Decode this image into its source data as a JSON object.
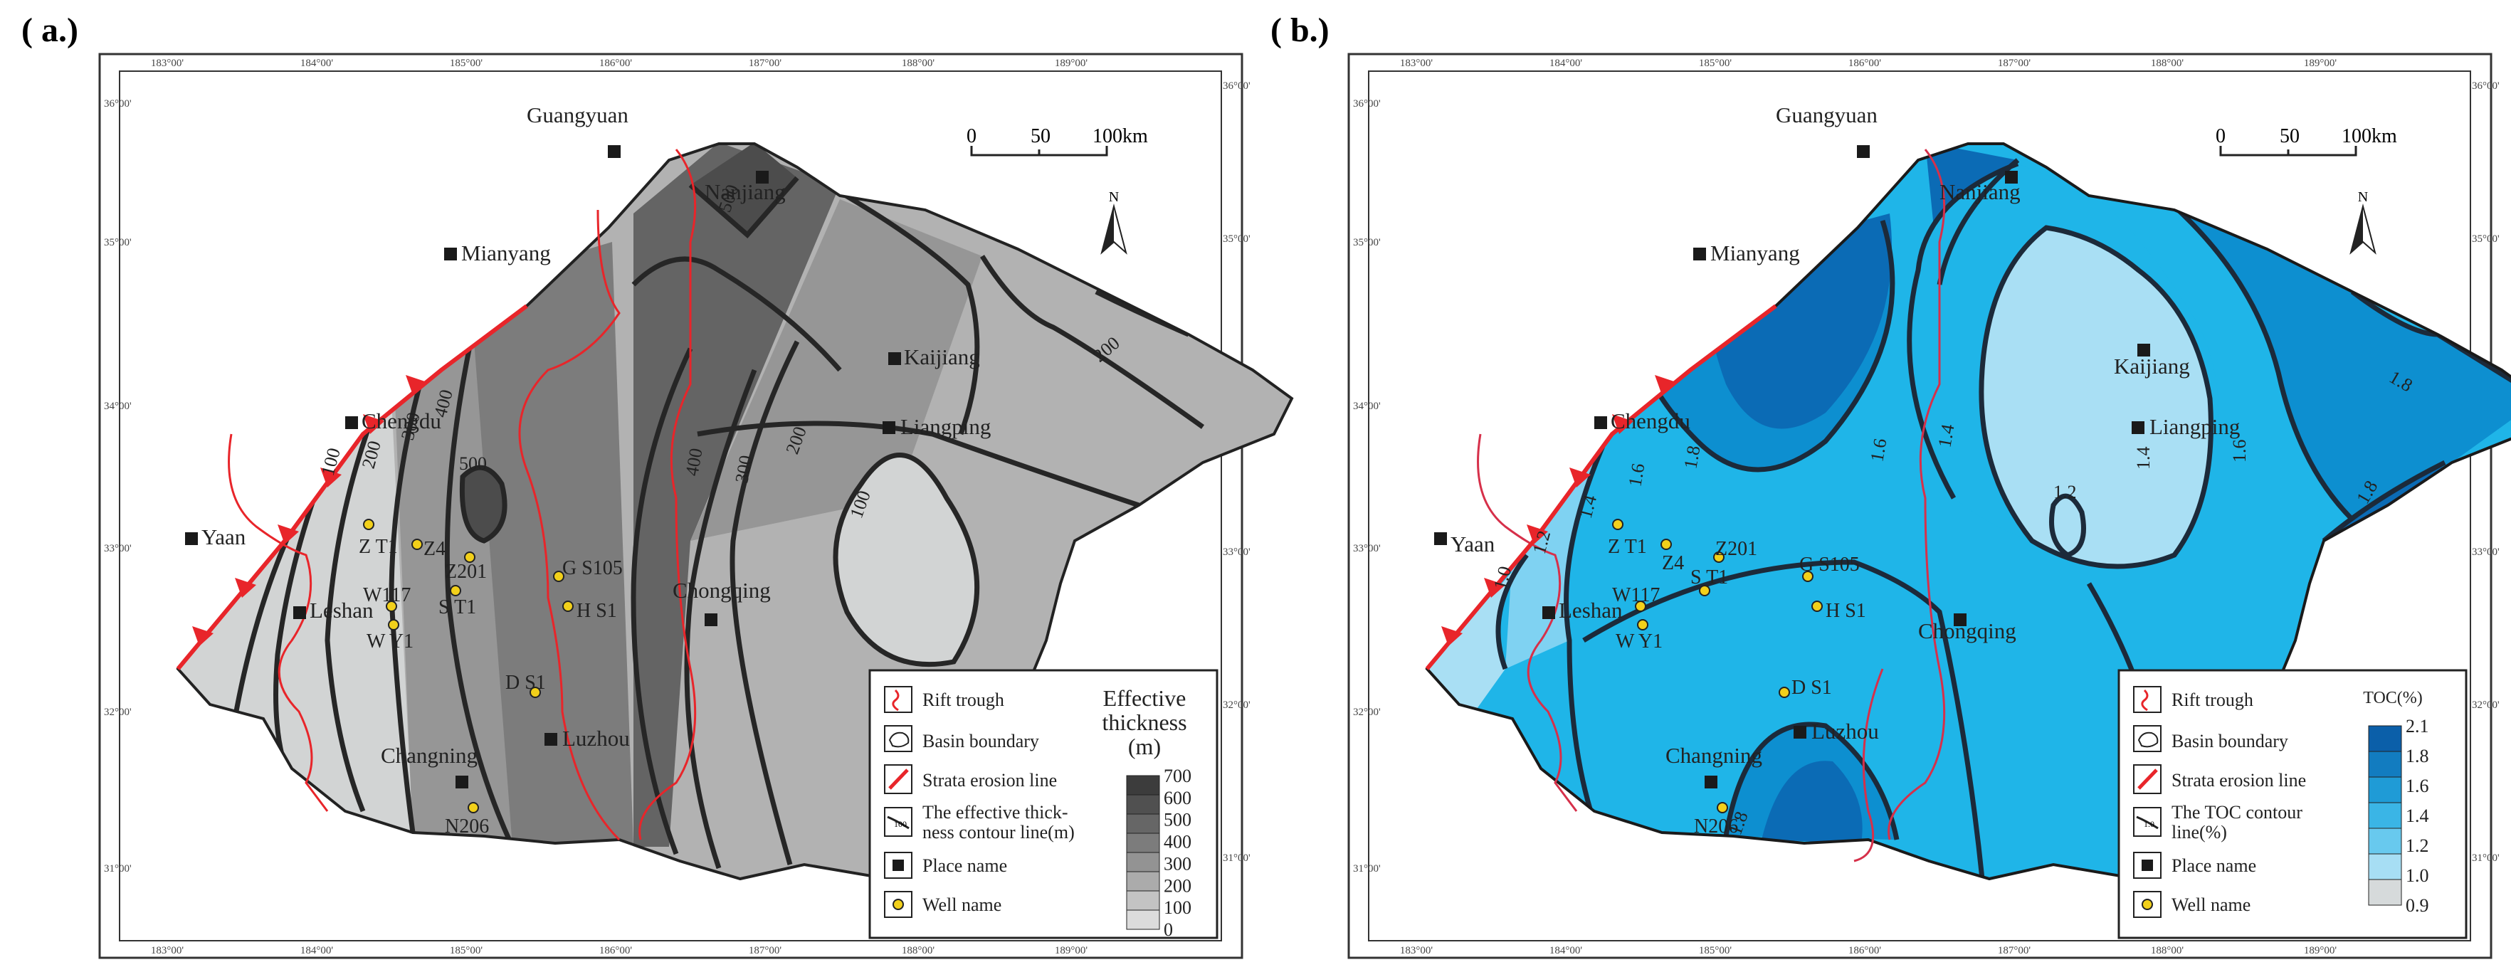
{
  "panels": [
    {
      "id": "a",
      "label": "( a.)",
      "top_ticks": [
        "183°00'",
        "184°00'",
        "185°00'",
        "186°00'",
        "187°00'",
        "188°00'",
        "189°00'"
      ],
      "side_ticks": [
        "36°00'",
        "35°00'",
        "34°00'",
        "33°00'",
        "32°00'",
        "31°00'"
      ],
      "scale_labels": [
        "0",
        "50",
        "100km"
      ],
      "north_label": "N",
      "places": [
        "Guangyuan",
        "Nanjiang",
        "Mianyang",
        "Kaijiang",
        "Liangping",
        "Chengdu",
        "Yaan",
        "Leshan",
        "Chongqing",
        "Changning",
        "Luzhou"
      ],
      "wells": [
        "Z T1",
        "Z4",
        "Z201",
        "S T1",
        "W117",
        "W Y1",
        "G S105",
        "H S1",
        "D S1",
        "N206"
      ],
      "contour_labels": [
        "100",
        "200",
        "300",
        "400",
        "500",
        "400",
        "300",
        "200",
        "100",
        "200",
        "500"
      ],
      "legend": {
        "items": [
          "Rift trough",
          "Basin boundary",
          "Strata erosion line",
          "The effective thick-\nness contour line(m)",
          "Place name",
          "Well name"
        ],
        "contour_sample": "100",
        "bar_title": "Effective\nthickness\n(m)",
        "bar_values": [
          "700",
          "600",
          "500",
          "400",
          "300",
          "200",
          "100",
          "0"
        ],
        "bar_colors": [
          "#3c3c3c",
          "#505050",
          "#666666",
          "#7c7c7c",
          "#939393",
          "#ababab",
          "#c3c3c3",
          "#dcdcdc"
        ]
      },
      "fills": {
        "lightest": "#d2d4d4",
        "light": "#b2b2b2",
        "mid": "#969696",
        "dark": "#7c7c7c",
        "darker": "#646464",
        "darkest": "#4c4c4c"
      }
    },
    {
      "id": "b",
      "label": "( b.)",
      "top_ticks": [
        "183°00'",
        "184°00'",
        "185°00'",
        "186°00'",
        "187°00'",
        "188°00'",
        "189°00'"
      ],
      "side_ticks": [
        "36°00'",
        "35°00'",
        "34°00'",
        "33°00'",
        "32°00'",
        "31°00'"
      ],
      "scale_labels": [
        "0",
        "50",
        "100km"
      ],
      "north_label": "N",
      "places": [
        "Guangyuan",
        "Nanjiang",
        "Mianyang",
        "Kaijiang",
        "Liangping",
        "Chengdu",
        "Yaan",
        "Leshan",
        "Chongqing",
        "Changning",
        "Luzhou"
      ],
      "wells": [
        "Z T1",
        "Z4",
        "Z201",
        "S T1",
        "W117",
        "W Y1",
        "G S105",
        "H S1",
        "D S1",
        "N206"
      ],
      "contour_labels": [
        "1.0",
        "1.2",
        "1.4",
        "1.6",
        "1.8",
        "1.6",
        "1.4",
        "1.4",
        "1.6",
        "1.8",
        "1.2",
        "1.8",
        "1.8"
      ],
      "legend": {
        "items": [
          "Rift trough",
          "Basin boundary",
          "Strata erosion line",
          "The TOC contour\nline(%)",
          "Place name",
          "Well  name"
        ],
        "contour_sample": "1.0",
        "bar_title": "TOC(%)",
        "bar_values": [
          "2.1",
          "1.8",
          "1.6",
          "1.4",
          "1.2",
          "1.0",
          "0.9"
        ],
        "bar_colors": [
          "#0b5fa9",
          "#127cc0",
          "#1f9bd6",
          "#3ab5e6",
          "#68c9ee",
          "#a7def4",
          "#d6dadb"
        ]
      },
      "fills": {
        "lightest": "#a9dff4",
        "light": "#7fd2f2",
        "mid": "#1fb5e8",
        "dark": "#0d8fd0",
        "darker": "#0b6bb5",
        "darkest": "#085aa6"
      }
    }
  ]
}
